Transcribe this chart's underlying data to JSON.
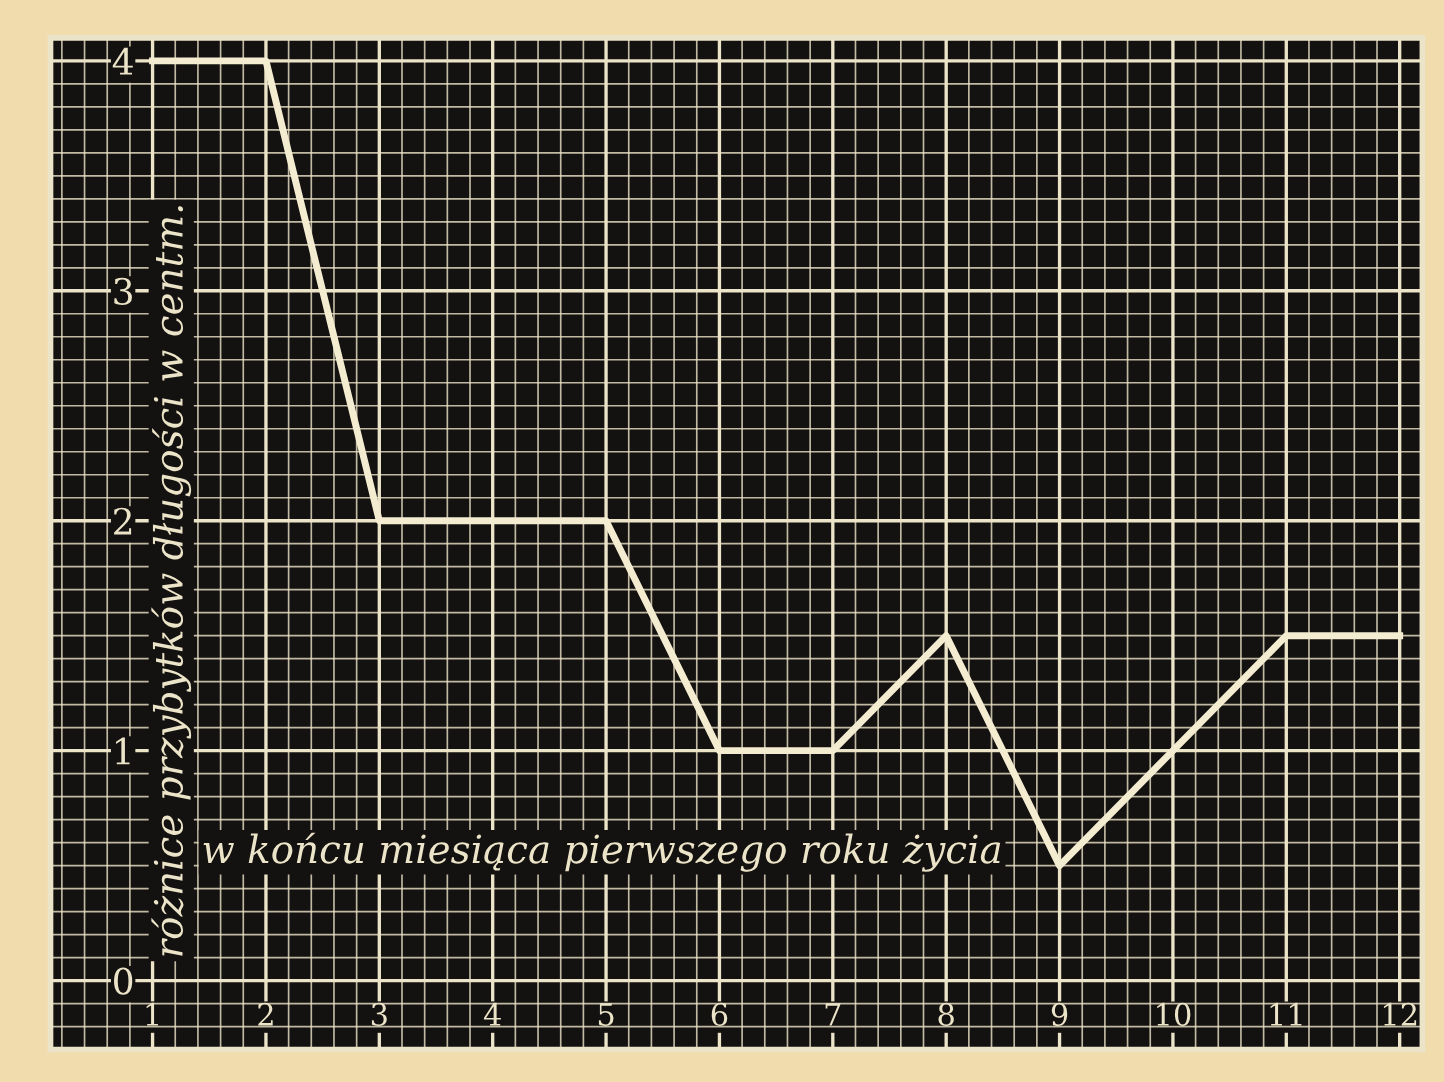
{
  "chart_data": {
    "type": "line",
    "xlabel": "w końcu miesiąca pierwszego roku życia",
    "ylabel": "różnice przybytków długości w centm.",
    "x": [
      1,
      2,
      3,
      4,
      5,
      6,
      7,
      8,
      9,
      10,
      11,
      12
    ],
    "series": [
      {
        "color": "#f4ecd0",
        "values": [
          4,
          4,
          2,
          2,
          2,
          1,
          1,
          1.5,
          0.5,
          1,
          1.5,
          1.5
        ]
      }
    ],
    "xlim": [
      0.1,
      12.2
    ],
    "ylim": [
      -0.3,
      4.1
    ],
    "xticks": [
      1,
      2,
      3,
      4,
      5,
      6,
      7,
      8,
      9,
      10,
      11,
      12
    ],
    "yticks": [
      0,
      1,
      2,
      3,
      4
    ],
    "grid": true,
    "marker": "none",
    "line_style": "solid"
  }
}
